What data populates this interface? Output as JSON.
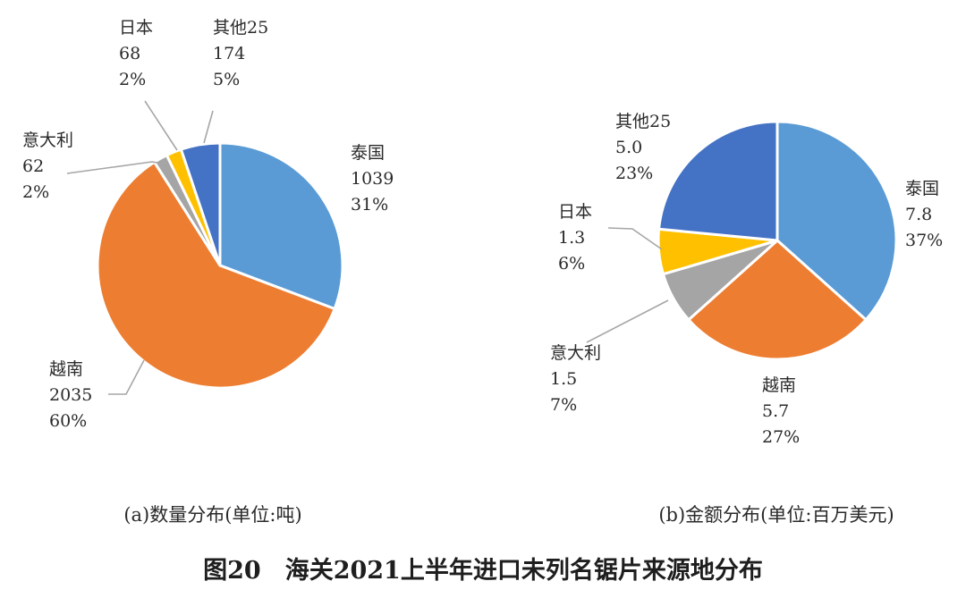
{
  "figure_caption": "图20　海关2021上半年进口未列名锯片来源地分布",
  "chart_data": [
    {
      "type": "pie",
      "subtitle": "(a)数量分布(单位:吨)",
      "unit": "吨",
      "slices": [
        {
          "name": "泰国",
          "value": "1039",
          "percent": "31%",
          "color": "#5b9bd5"
        },
        {
          "name": "越南",
          "value": "2035",
          "percent": "60%",
          "color": "#ed7d31"
        },
        {
          "name": "意大利",
          "value": "62",
          "percent": "2%",
          "color": "#a5a5a5"
        },
        {
          "name": "日本",
          "value": "68",
          "percent": "2%",
          "color": "#ffc000"
        },
        {
          "name": "其他25",
          "value": "174",
          "percent": "5%",
          "color": "#4472c4"
        }
      ]
    },
    {
      "type": "pie",
      "subtitle": "(b)金额分布(单位:百万美元)",
      "unit": "百万美元",
      "slices": [
        {
          "name": "泰国",
          "value": "7.8",
          "percent": "37%",
          "color": "#5b9bd5"
        },
        {
          "name": "越南",
          "value": "5.7",
          "percent": "27%",
          "color": "#ed7d31"
        },
        {
          "name": "意大利",
          "value": "1.5",
          "percent": "7%",
          "color": "#a5a5a5"
        },
        {
          "name": "日本",
          "value": "1.3",
          "percent": "6%",
          "color": "#ffc000"
        },
        {
          "name": "其他25",
          "value": "5.0",
          "percent": "23%",
          "color": "#4472c4"
        }
      ]
    }
  ]
}
